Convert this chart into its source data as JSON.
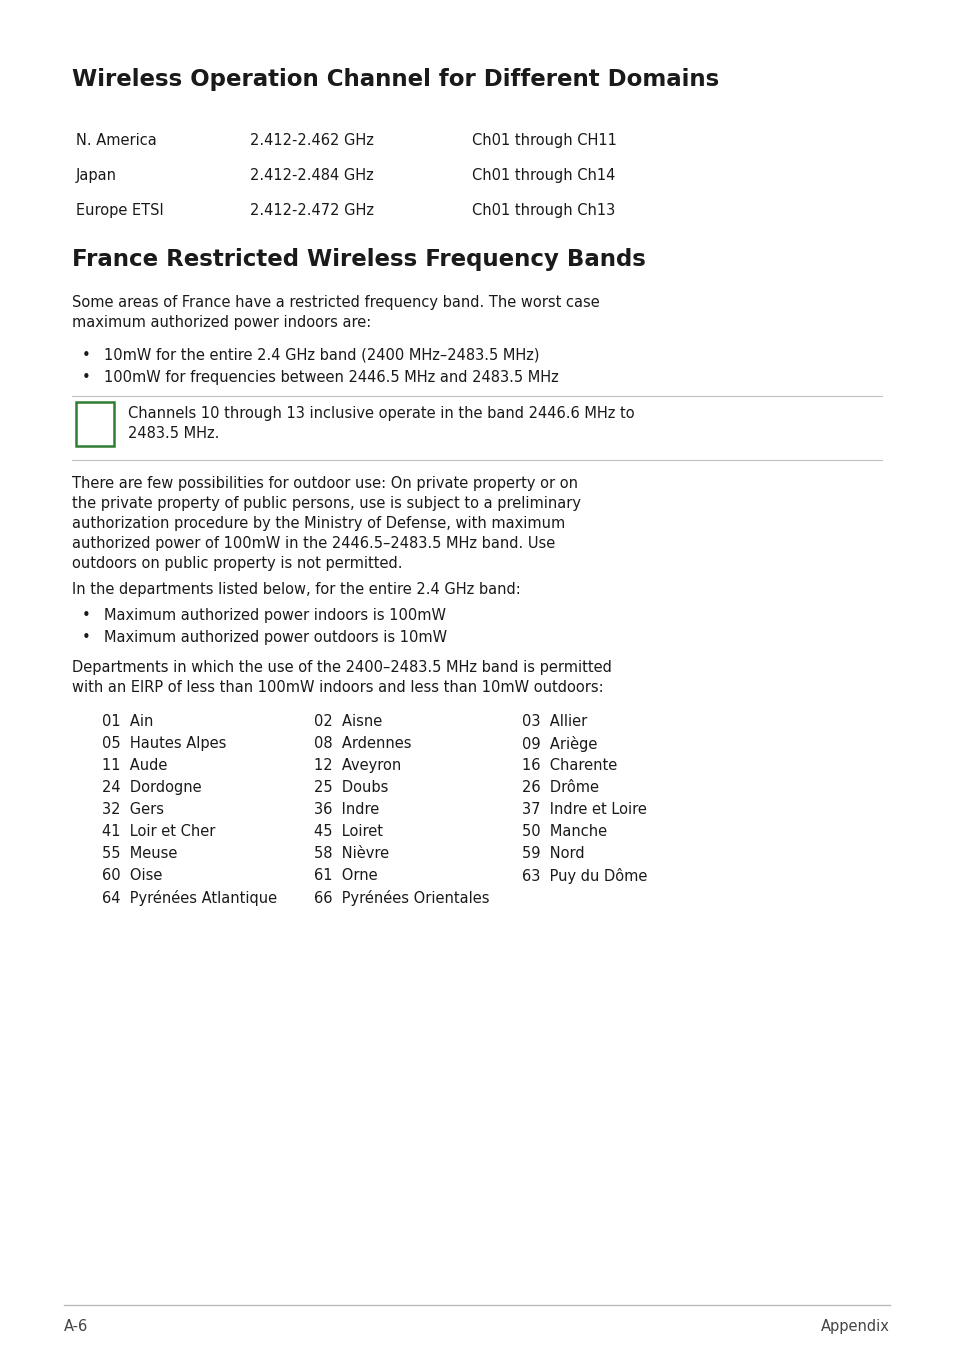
{
  "bg_color": "#ffffff",
  "title1": "Wireless Operation Channel for Different Domains",
  "table_rows": [
    [
      "N. America",
      "2.412-2.462 GHz",
      "Ch01 through CH11"
    ],
    [
      "Japan",
      "2.412-2.484 GHz",
      "Ch01 through Ch14"
    ],
    [
      "Europe ETSI",
      "2.412-2.472 GHz",
      "Ch01 through Ch13"
    ]
  ],
  "title2": "France Restricted Wireless Frequency Bands",
  "para1_line1": "Some areas of France have a restricted frequency band. The worst case",
  "para1_line2": "maximum authorized power indoors are:",
  "bullets1": [
    "10mW for the entire 2.4 GHz band (2400 MHz–2483.5 MHz)",
    "100mW for frequencies between 2446.5 MHz and 2483.5 MHz"
  ],
  "note_line1": "Channels 10 through 13 inclusive operate in the band 2446.6 MHz to",
  "note_line2": "2483.5 MHz.",
  "para2_lines": [
    "There are few possibilities for outdoor use: On private property or on",
    "the private property of public persons, use is subject to a preliminary",
    "authorization procedure by the Ministry of Defense, with maximum",
    "authorized power of 100mW in the 2446.5–2483.5 MHz band. Use",
    "outdoors on public property is not permitted."
  ],
  "para3": "In the departments listed below, for the entire 2.4 GHz band:",
  "bullets2": [
    "Maximum authorized power indoors is 100mW",
    "Maximum authorized power outdoors is 10mW"
  ],
  "para4_lines": [
    "Departments in which the use of the 2400–2483.5 MHz band is permitted",
    "with an EIRP of less than 100mW indoors and less than 10mW outdoors:"
  ],
  "dept_rows": [
    [
      "01  Ain",
      "02  Aisne",
      "03  Allier"
    ],
    [
      "05  Hautes Alpes",
      "08  Ardennes",
      "09  Ariège"
    ],
    [
      "11  Aude",
      "12  Aveyron",
      "16  Charente"
    ],
    [
      "24  Dordogne",
      "25  Doubs",
      "26  Drôme"
    ],
    [
      "32  Gers",
      "36  Indre",
      "37  Indre et Loire"
    ],
    [
      "41  Loir et Cher",
      "45  Loiret",
      "50  Manche"
    ],
    [
      "55  Meuse",
      "58  Nièvre",
      "59  Nord"
    ],
    [
      "60  Oise",
      "61  Orne",
      "63  Puy du Dôme"
    ],
    [
      "64  Pyrénées Atlantique",
      "66  Pyrénées Orientales",
      ""
    ]
  ],
  "footer_left": "A-6",
  "footer_right": "Appendix",
  "note_icon_color": "#2e7d32",
  "text_color": "#1a1a1a",
  "footer_line_color": "#bbbbbb"
}
